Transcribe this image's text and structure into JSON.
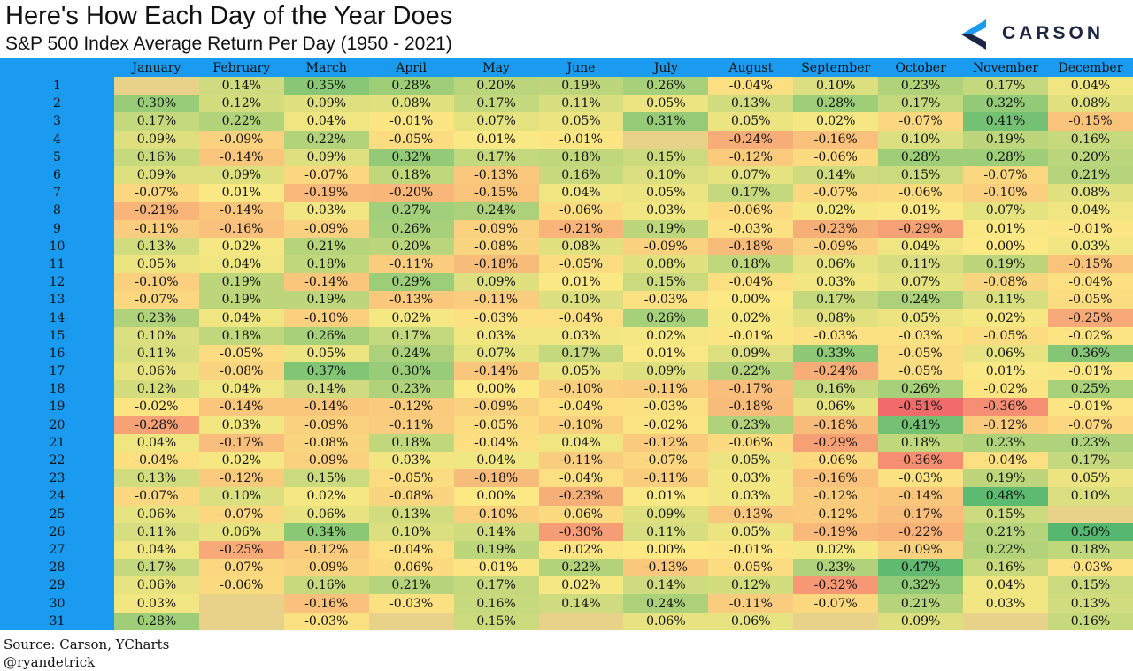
{
  "header": {
    "title": "Here's How Each Day of the Year Does",
    "subtitle": "S&P 500 Index Average Return Per Day (1950 - 2021)"
  },
  "logo": {
    "text": "CARSON",
    "icon": "carson-chevron-logo",
    "colors": [
      "#1a9bf0",
      "#1c2541"
    ]
  },
  "footer": {
    "source": "Source: Carson, YCharts",
    "handle": "@ryandetrick"
  },
  "colors": {
    "header_bg": "#1a9bf0",
    "empty_cell": "#e8d28a",
    "negative_max": "#f26b6b",
    "neutral": "#fce983",
    "positive_max": "#56b870"
  },
  "chart_data": {
    "type": "table",
    "title": "Here's How Each Day of the Year Does",
    "subtitle": "S&P 500 Index Average Return Per Day (1950 - 2021)",
    "months": [
      "January",
      "February",
      "March",
      "April",
      "May",
      "June",
      "July",
      "August",
      "September",
      "October",
      "November",
      "December"
    ],
    "days": [
      "1",
      "2",
      "3",
      "4",
      "5",
      "6",
      "7",
      "8",
      "9",
      "10",
      "11",
      "12",
      "13",
      "14",
      "15",
      "16",
      "17",
      "18",
      "19",
      "20",
      "21",
      "22",
      "23",
      "24",
      "25",
      "26",
      "27",
      "28",
      "29",
      "30",
      "31"
    ],
    "values": [
      [
        "",
        "0.14%",
        "0.35%",
        "0.28%",
        "0.20%",
        "0.19%",
        "0.26%",
        "-0.04%",
        "0.10%",
        "0.23%",
        "0.17%",
        "0.04%"
      ],
      [
        "0.30%",
        "0.12%",
        "0.09%",
        "0.08%",
        "0.17%",
        "0.11%",
        "0.05%",
        "0.13%",
        "0.28%",
        "0.17%",
        "0.32%",
        "0.08%"
      ],
      [
        "0.17%",
        "0.22%",
        "0.04%",
        "-0.01%",
        "0.07%",
        "0.05%",
        "0.31%",
        "0.05%",
        "0.02%",
        "-0.07%",
        "0.41%",
        "-0.15%"
      ],
      [
        "0.09%",
        "-0.09%",
        "0.22%",
        "-0.05%",
        "0.01%",
        "-0.01%",
        "",
        "-0.24%",
        "-0.16%",
        "0.10%",
        "0.19%",
        "0.16%"
      ],
      [
        "0.16%",
        "-0.14%",
        "0.09%",
        "0.32%",
        "0.17%",
        "0.18%",
        "0.15%",
        "-0.12%",
        "-0.06%",
        "0.28%",
        "0.28%",
        "0.20%"
      ],
      [
        "0.09%",
        "0.09%",
        "-0.07%",
        "0.18%",
        "-0.13%",
        "0.16%",
        "0.10%",
        "0.07%",
        "0.14%",
        "0.15%",
        "-0.07%",
        "0.21%"
      ],
      [
        "-0.07%",
        "0.01%",
        "-0.19%",
        "-0.20%",
        "-0.15%",
        "0.04%",
        "0.05%",
        "0.17%",
        "-0.07%",
        "-0.06%",
        "-0.10%",
        "0.08%"
      ],
      [
        "-0.21%",
        "-0.14%",
        "0.03%",
        "0.27%",
        "0.24%",
        "-0.06%",
        "0.03%",
        "-0.06%",
        "0.02%",
        "0.01%",
        "0.07%",
        "0.04%"
      ],
      [
        "-0.11%",
        "-0.16%",
        "-0.09%",
        "0.26%",
        "-0.09%",
        "-0.21%",
        "0.19%",
        "-0.03%",
        "-0.23%",
        "-0.29%",
        "0.01%",
        "-0.01%"
      ],
      [
        "0.13%",
        "0.02%",
        "0.21%",
        "0.20%",
        "-0.08%",
        "0.08%",
        "-0.09%",
        "-0.18%",
        "-0.09%",
        "0.04%",
        "0.00%",
        "0.03%"
      ],
      [
        "0.05%",
        "0.04%",
        "0.18%",
        "-0.11%",
        "-0.18%",
        "-0.05%",
        "0.08%",
        "0.18%",
        "0.06%",
        "0.11%",
        "0.19%",
        "-0.15%"
      ],
      [
        "-0.10%",
        "0.19%",
        "-0.14%",
        "0.29%",
        "0.09%",
        "0.01%",
        "0.15%",
        "-0.04%",
        "0.03%",
        "0.07%",
        "-0.08%",
        "-0.04%"
      ],
      [
        "-0.07%",
        "0.19%",
        "0.19%",
        "-0.13%",
        "-0.11%",
        "0.10%",
        "-0.03%",
        "0.00%",
        "0.17%",
        "0.24%",
        "0.11%",
        "-0.05%"
      ],
      [
        "0.23%",
        "0.04%",
        "-0.10%",
        "0.02%",
        "-0.03%",
        "-0.04%",
        "0.26%",
        "0.02%",
        "0.08%",
        "0.05%",
        "0.02%",
        "-0.25%"
      ],
      [
        "0.10%",
        "0.18%",
        "0.26%",
        "0.17%",
        "0.03%",
        "0.03%",
        "0.02%",
        "-0.01%",
        "-0.03%",
        "-0.03%",
        "-0.05%",
        "-0.02%"
      ],
      [
        "0.11%",
        "-0.05%",
        "0.05%",
        "0.24%",
        "0.07%",
        "0.17%",
        "0.01%",
        "0.09%",
        "0.33%",
        "-0.05%",
        "0.06%",
        "0.36%"
      ],
      [
        "0.06%",
        "-0.08%",
        "0.37%",
        "0.30%",
        "-0.14%",
        "0.05%",
        "0.09%",
        "0.22%",
        "-0.24%",
        "-0.05%",
        "0.01%",
        "-0.01%"
      ],
      [
        "0.12%",
        "0.04%",
        "0.14%",
        "0.23%",
        "0.00%",
        "-0.10%",
        "-0.11%",
        "-0.17%",
        "0.16%",
        "0.26%",
        "-0.02%",
        "0.25%"
      ],
      [
        "-0.02%",
        "-0.14%",
        "-0.14%",
        "-0.12%",
        "-0.09%",
        "-0.04%",
        "-0.03%",
        "-0.18%",
        "0.06%",
        "-0.51%",
        "-0.36%",
        "-0.01%"
      ],
      [
        "-0.28%",
        "0.03%",
        "-0.09%",
        "-0.11%",
        "-0.05%",
        "-0.10%",
        "-0.02%",
        "0.23%",
        "-0.18%",
        "0.41%",
        "-0.12%",
        "-0.07%"
      ],
      [
        "0.04%",
        "-0.17%",
        "-0.08%",
        "0.18%",
        "-0.04%",
        "0.04%",
        "-0.12%",
        "-0.06%",
        "-0.29%",
        "0.18%",
        "0.23%",
        "0.23%"
      ],
      [
        "-0.04%",
        "0.02%",
        "-0.09%",
        "0.03%",
        "0.04%",
        "-0.11%",
        "-0.07%",
        "0.05%",
        "-0.06%",
        "-0.36%",
        "-0.04%",
        "0.17%"
      ],
      [
        "0.13%",
        "-0.12%",
        "0.15%",
        "-0.05%",
        "-0.18%",
        "-0.04%",
        "-0.11%",
        "0.03%",
        "-0.16%",
        "-0.03%",
        "0.19%",
        "0.05%"
      ],
      [
        "-0.07%",
        "0.10%",
        "0.02%",
        "-0.08%",
        "0.00%",
        "-0.23%",
        "0.01%",
        "0.03%",
        "-0.12%",
        "-0.14%",
        "0.48%",
        "0.10%"
      ],
      [
        "0.06%",
        "-0.07%",
        "0.06%",
        "0.13%",
        "-0.10%",
        "-0.06%",
        "0.09%",
        "-0.13%",
        "-0.12%",
        "-0.17%",
        "0.15%",
        ""
      ],
      [
        "0.11%",
        "0.06%",
        "0.34%",
        "0.10%",
        "0.14%",
        "-0.30%",
        "0.11%",
        "0.05%",
        "-0.19%",
        "-0.22%",
        "0.21%",
        "0.50%"
      ],
      [
        "0.04%",
        "-0.25%",
        "-0.12%",
        "-0.04%",
        "0.19%",
        "-0.02%",
        "0.00%",
        "-0.01%",
        "0.02%",
        "-0.09%",
        "0.22%",
        "0.18%"
      ],
      [
        "0.17%",
        "-0.07%",
        "-0.09%",
        "-0.06%",
        "-0.01%",
        "0.22%",
        "-0.13%",
        "-0.05%",
        "0.23%",
        "0.47%",
        "0.16%",
        "-0.03%"
      ],
      [
        "0.06%",
        "-0.06%",
        "0.16%",
        "0.21%",
        "0.17%",
        "0.02%",
        "0.14%",
        "0.12%",
        "-0.32%",
        "0.32%",
        "0.04%",
        "0.15%"
      ],
      [
        "0.03%",
        "",
        "-0.16%",
        "-0.03%",
        "0.16%",
        "0.14%",
        "0.24%",
        "-0.11%",
        "-0.07%",
        "0.21%",
        "0.03%",
        "0.13%"
      ],
      [
        "0.28%",
        "",
        "-0.03%",
        "",
        "0.15%",
        "",
        "0.06%",
        "0.06%",
        "",
        "0.09%",
        "",
        "0.16%"
      ]
    ]
  }
}
